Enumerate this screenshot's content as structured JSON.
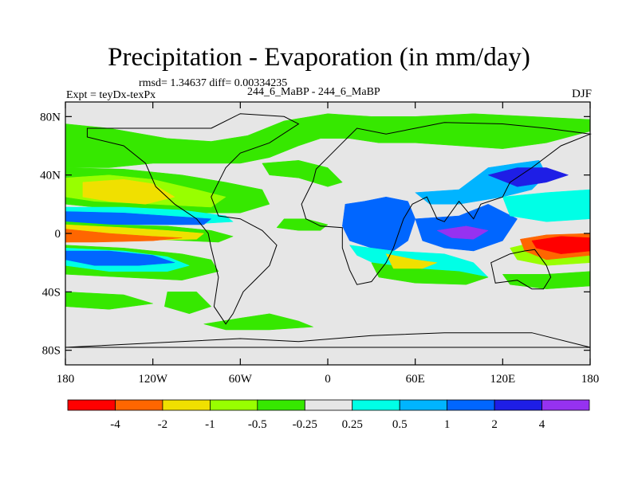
{
  "chart_data": {
    "type": "heatmap",
    "title": "Precipitation - Evaporation (in mm/day)",
    "stats": "rmsd= 1.34637 diff= 0.00334235",
    "experiment": "Expt = teyDx-texPx",
    "center_label": "244_6_MaBP - 244_6_MaBP",
    "season": "DJF",
    "x_ticks": [
      "180",
      "120W",
      "60W",
      "0",
      "60E",
      "120E",
      "180"
    ],
    "x_range": [
      -180,
      180
    ],
    "y_ticks": [
      "80N",
      "40N",
      "0",
      "40S",
      "80S"
    ],
    "y_range": [
      -90,
      90
    ],
    "colorbar": {
      "labels": [
        "-4",
        "-2",
        "-1",
        "-0.5",
        "-0.25",
        "0.25",
        "0.5",
        "1",
        "2",
        "4"
      ],
      "colors": [
        "#ff0000",
        "#ff6600",
        "#f0e000",
        "#98ff00",
        "#36e800",
        "#e6e6e6",
        "#00ffe6",
        "#00b4ff",
        "#0066ff",
        "#1e1ee6",
        "#9632f0"
      ]
    }
  }
}
